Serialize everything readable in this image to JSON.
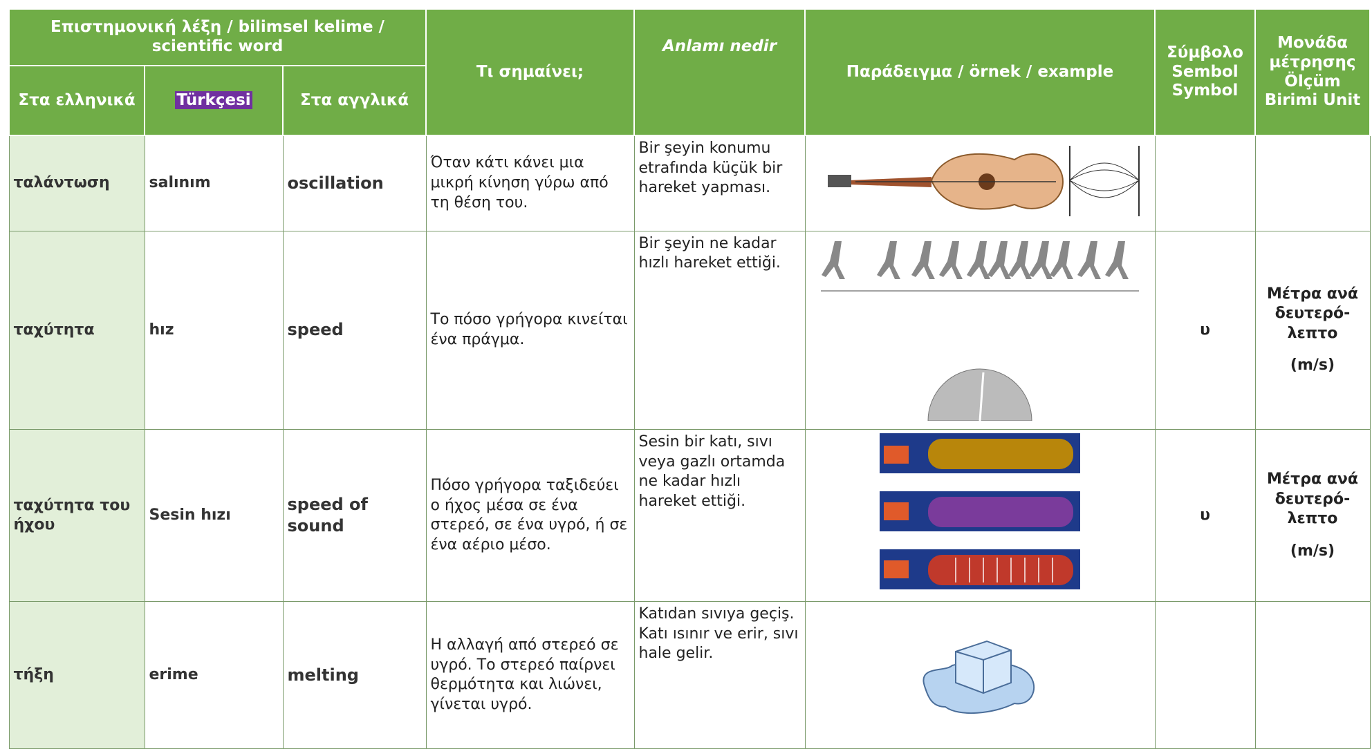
{
  "header": {
    "group": "Επιστημονική λέξη / bilimsel kelime / scientific word",
    "greek": "Στα ελληνικά",
    "turkish": "Türkçesi",
    "english": "Στα αγγλικά",
    "meaning_gr": "Τι σημαίνει;",
    "meaning_tr": "Anlamı nedir",
    "example": "Παράδειγμα / örnek / example",
    "symbol": "Σύμβολο Sembol Symbol",
    "unit": "Μονάδα μέτρησης Ölçüm Birimi Unit"
  },
  "rows": [
    {
      "greek": "ταλάντωση",
      "turkish": "salınım",
      "english": "oscillation",
      "meaning_gr": "Όταν κάτι κάνει μια μικρή κίνηση γύρω από τη θέση του.",
      "meaning_tr": "Bir şeyin konumu etrafında küçük bir hareket yapması.",
      "symbol": "",
      "unit": "",
      "unit_abbr": ""
    },
    {
      "greek": "ταχύτητα",
      "turkish": "hız",
      "english": "speed",
      "meaning_gr": "Το πόσο γρήγορα κινείται ένα πράγμα.",
      "meaning_tr": "Bir şeyin ne kadar hızlı hareket ettiği.",
      "symbol": "υ",
      "unit": "Μέτρα ανά δευτερό-λεπτο",
      "unit_abbr": "(m/s)"
    },
    {
      "greek": "ταχύτητα του ήχου",
      "turkish": "Sesin hızı",
      "english": "speed of sound",
      "meaning_gr": "Πόσο γρήγορα ταξιδεύει ο ήχος μέσα σε ένα στερεό, σε ένα υγρό, ή σε ένα αέριο μέσο.",
      "meaning_tr": "Sesin bir katı, sıvı veya gazlı ortamda ne kadar hızlı hareket ettiği.",
      "symbol": "υ",
      "unit": "Μέτρα ανά δευτερό-λεπτο",
      "unit_abbr": "(m/s)"
    },
    {
      "greek": "τήξη",
      "turkish": "erime",
      "english": "melting",
      "meaning_gr": "Η αλλαγή από στερεό σε υγρό. Το στερεό παίρνει θερμότητα και λιώνει, γίνεται υγρό.",
      "meaning_tr": "Katıdan sıvıya geçiş. Katı ısınır ve erir, sıvı hale gelir.",
      "symbol": "",
      "unit": "",
      "unit_abbr": ""
    }
  ]
}
